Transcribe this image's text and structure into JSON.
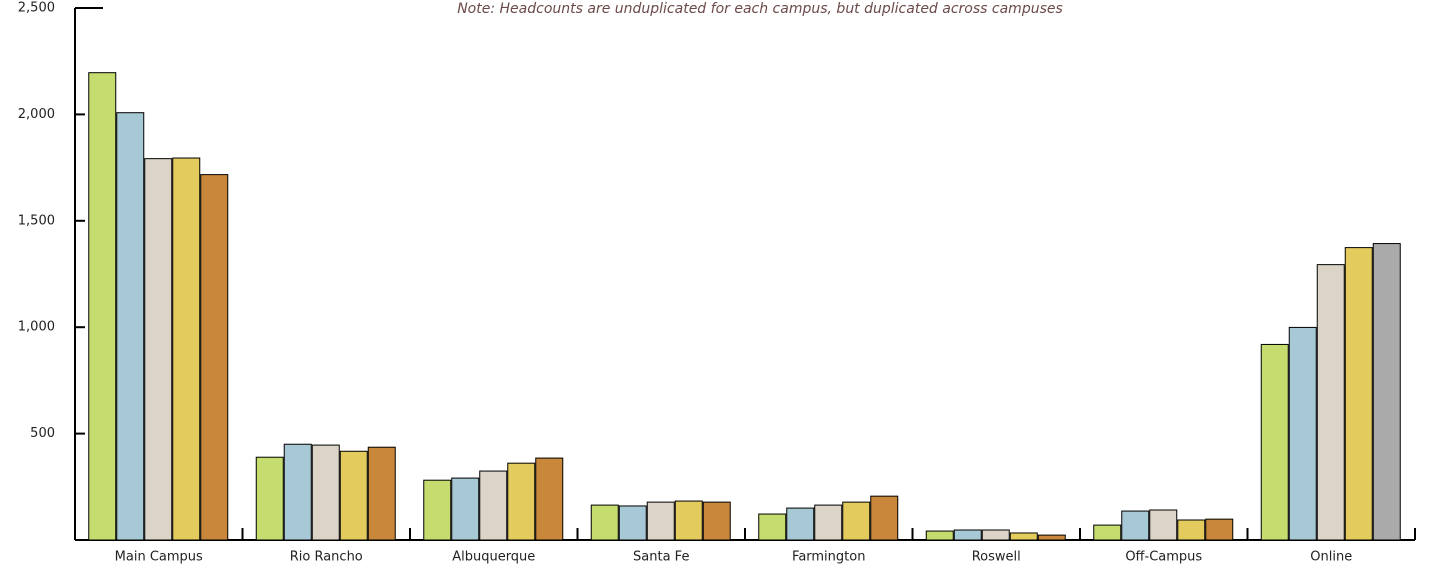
{
  "chart_data": {
    "type": "bar",
    "annotation": "Note: Headcounts are unduplicated for each campus, but duplicated across campuses",
    "categories": [
      "Main Campus",
      "Rio Rancho",
      "Albuquerque",
      "Santa Fe",
      "Farmington",
      "Roswell",
      "Off-Campus",
      "Online"
    ],
    "series": [
      {
        "color": "#c5dd6f",
        "values": [
          2196,
          389,
          281,
          164,
          122,
          42,
          70,
          919
        ]
      },
      {
        "color": "#a7c8d5",
        "values": [
          2008,
          450,
          291,
          160,
          150,
          47,
          136,
          999
        ]
      },
      {
        "color": "#ddd4c8",
        "values": [
          1792,
          446,
          324,
          178,
          164,
          47,
          141,
          1294
        ]
      },
      {
        "color": "#e3cb5e",
        "values": [
          1795,
          417,
          361,
          183,
          178,
          33,
          94,
          1374
        ]
      },
      {
        "color": "#c8873a",
        "point_colors": [
          "#c8873a",
          "#c8873a",
          "#c8873a",
          "#c8873a",
          "#c8873a",
          "#c8873a",
          "#c8873a",
          "#aaaaaa"
        ],
        "values": [
          1717,
          436,
          385,
          178,
          206,
          23,
          98,
          1393
        ]
      }
    ],
    "ylim": [
      0,
      2500
    ],
    "yticks": [
      {
        "value": 500,
        "label": "500"
      },
      {
        "value": 1000,
        "label": "1,000"
      },
      {
        "value": 1500,
        "label": "1,500"
      },
      {
        "value": 2000,
        "label": "2,000"
      },
      {
        "value": 2500,
        "label": "2,500"
      }
    ]
  }
}
